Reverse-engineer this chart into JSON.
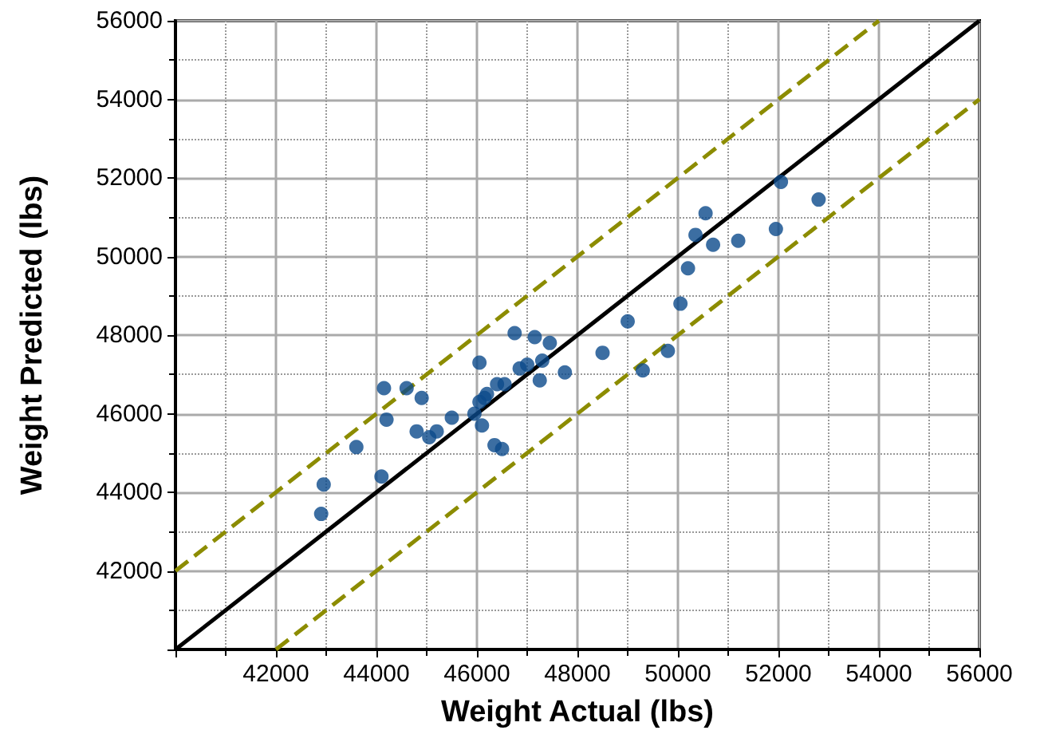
{
  "chart_data": {
    "type": "scatter",
    "xlabel": "Weight Actual (lbs)",
    "ylabel": "Weight Predicted (lbs)",
    "xlim": [
      40000,
      56000
    ],
    "ylim": [
      40000,
      56000
    ],
    "xticks": [
      {
        "value": 40000,
        "label": null
      },
      42000,
      44000,
      46000,
      48000,
      50000,
      52000,
      54000,
      56000
    ],
    "yticks": [
      {
        "value": 40000,
        "label": null
      },
      42000,
      44000,
      46000,
      48000,
      50000,
      52000,
      54000,
      56000
    ],
    "grid": true,
    "marker": "circle",
    "series": [
      {
        "color": "#0b4a8b",
        "x": [
          42900,
          42950,
          43600,
          44100,
          44150,
          44200,
          44600,
          44900,
          44800,
          45050,
          45200,
          45500,
          45950,
          46050,
          46050,
          46100,
          46150,
          46200,
          46350,
          46500,
          46400,
          46550,
          46850,
          47000,
          47250,
          47300,
          47750,
          48500,
          46750,
          47150,
          47450,
          49000,
          49300,
          49800,
          50050,
          50200,
          50700,
          51200,
          52050,
          52800,
          51950,
          50550,
          50350
        ],
        "values": [
          43450,
          44200,
          45150,
          44400,
          46650,
          45850,
          46650,
          46400,
          45550,
          45400,
          45550,
          45900,
          46000,
          47300,
          46300,
          45700,
          46400,
          46500,
          45200,
          45100,
          46750,
          46750,
          47150,
          47250,
          46850,
          47350,
          47050,
          47550,
          48050,
          47950,
          47800,
          48350,
          47100,
          47600,
          48800,
          49700,
          50300,
          50400,
          51900,
          51450,
          50700,
          51100,
          50550
        ]
      },
      {
        "type": "line",
        "color": "#000000",
        "line_style": "solid",
        "marker": "none",
        "x": [
          40000,
          56000
        ],
        "values": [
          40000,
          56000
        ]
      },
      {
        "type": "line",
        "color": "#8c8c00",
        "line_style": "dashed",
        "marker": "none",
        "x": [
          40000,
          54000
        ],
        "values": [
          42000,
          56000
        ]
      },
      {
        "type": "line",
        "color": "#8c8c00",
        "line_style": "dashed",
        "marker": "none",
        "x": [
          42000,
          56000
        ],
        "values": [
          40000,
          54000
        ]
      }
    ]
  }
}
